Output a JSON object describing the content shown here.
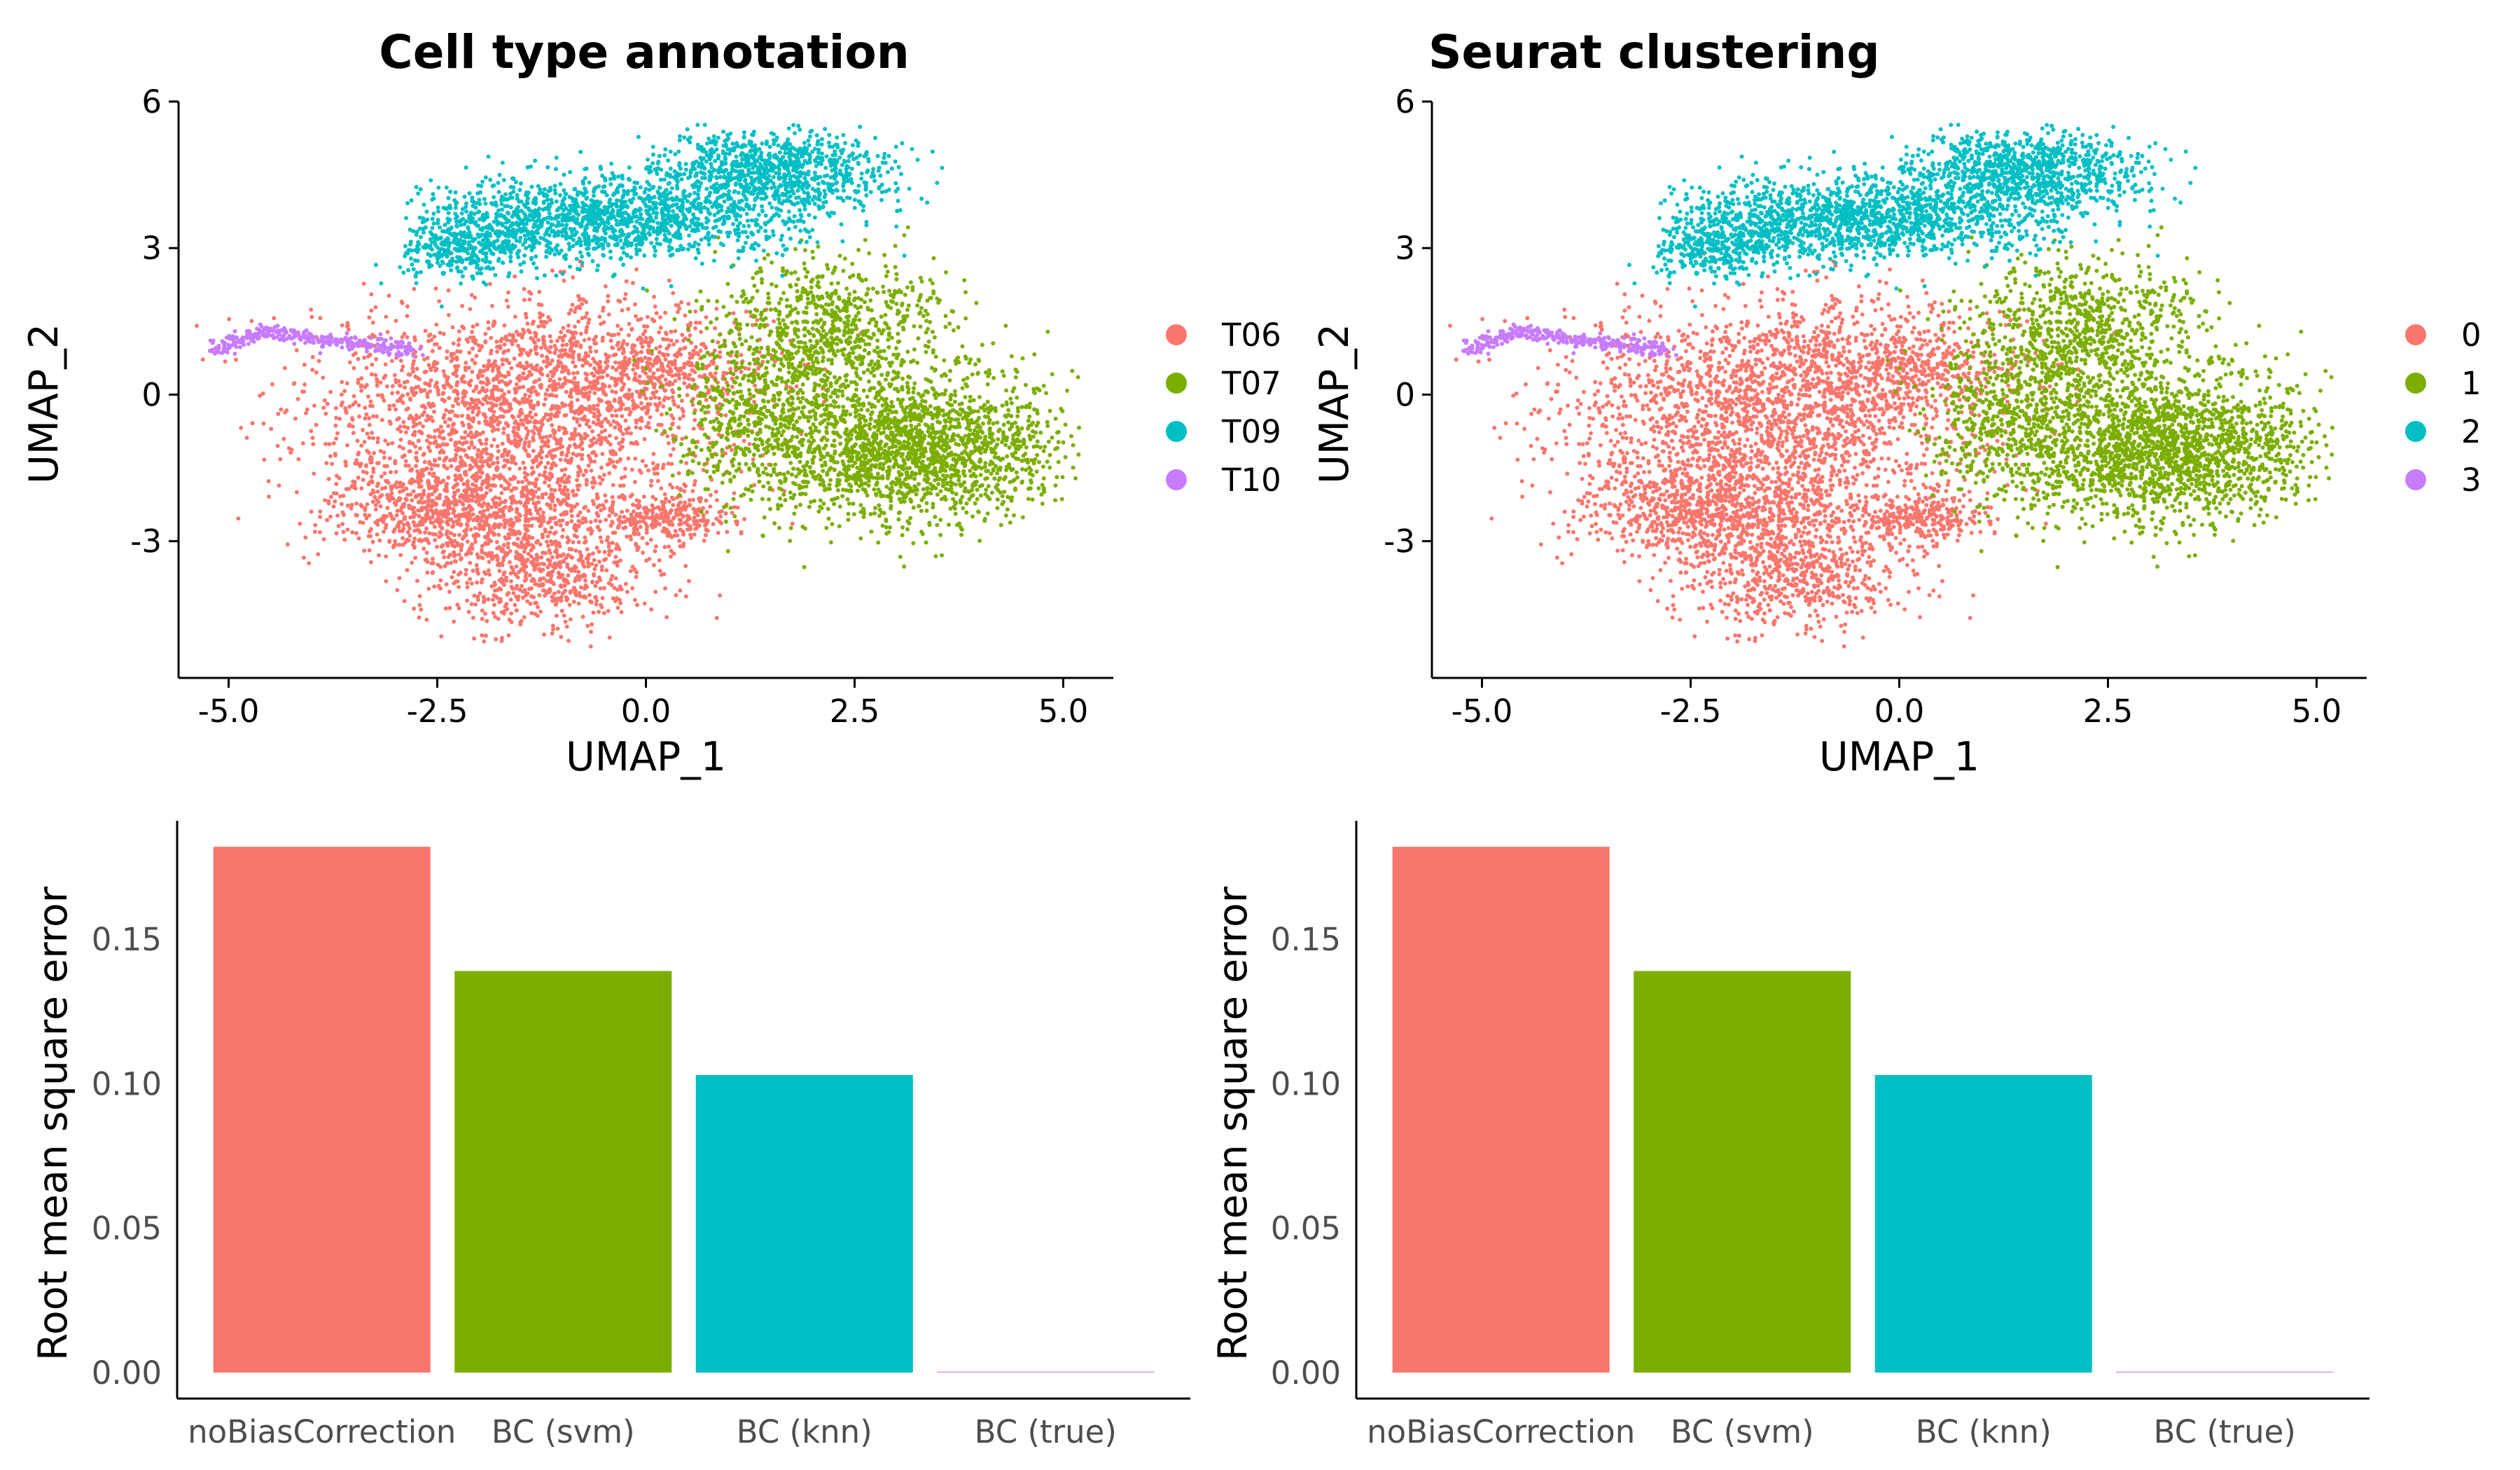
{
  "chart_data": [
    {
      "type": "scatter",
      "title": "Cell type annotation",
      "xlabel": "UMAP_1",
      "ylabel": "UMAP_2",
      "xlim": [
        -5.6,
        5.6
      ],
      "ylim": [
        -5.8,
        6.0
      ],
      "xticks": [
        -5.0,
        -2.5,
        0.0,
        2.5,
        5.0
      ],
      "xtick_labels": [
        "-5.0",
        "-2.5",
        "0.0",
        "2.5",
        "5.0"
      ],
      "yticks": [
        -3,
        0,
        3,
        6
      ],
      "ytick_labels": [
        "-3",
        "0",
        "3",
        "6"
      ],
      "grid": false,
      "legend_position": "right",
      "series": [
        {
          "name": "T06",
          "color": "#F8766D",
          "approx_center": [
            -1.5,
            -1.0
          ]
        },
        {
          "name": "T07",
          "color": "#7CAE00",
          "approx_center": [
            3.0,
            -0.5
          ]
        },
        {
          "name": "T09",
          "color": "#00BFC4",
          "approx_center": [
            0.0,
            3.8
          ]
        },
        {
          "name": "T10",
          "color": "#C77CFF",
          "approx_center": [
            -4.3,
            1.2
          ]
        }
      ]
    },
    {
      "type": "scatter",
      "title": "Seurat clustering",
      "xlabel": "UMAP_1",
      "ylabel": "UMAP_2",
      "xlim": [
        -5.6,
        5.6
      ],
      "ylim": [
        -5.8,
        6.0
      ],
      "xticks": [
        -5.0,
        -2.5,
        0.0,
        2.5,
        5.0
      ],
      "xtick_labels": [
        "-5.0",
        "-2.5",
        "0.0",
        "2.5",
        "5.0"
      ],
      "yticks": [
        -3,
        0,
        3,
        6
      ],
      "ytick_labels": [
        "-3",
        "0",
        "3",
        "6"
      ],
      "grid": false,
      "legend_position": "right",
      "series": [
        {
          "name": "0",
          "color": "#F8766D",
          "approx_center": [
            -1.5,
            -1.0
          ]
        },
        {
          "name": "1",
          "color": "#7CAE00",
          "approx_center": [
            3.0,
            -0.5
          ]
        },
        {
          "name": "2",
          "color": "#00BFC4",
          "approx_center": [
            0.0,
            3.8
          ]
        },
        {
          "name": "3",
          "color": "#C77CFF",
          "approx_center": [
            -4.3,
            1.2
          ]
        }
      ]
    },
    {
      "type": "bar",
      "title": "",
      "xlabel": "",
      "ylabel": "Root mean square error",
      "categories": [
        "noBiasCorrection",
        "BC (svm)",
        "BC (knn)",
        "BC (true)"
      ],
      "values": [
        0.182,
        0.139,
        0.103,
        0.0
      ],
      "colors": [
        "#F8766D",
        "#7CAE00",
        "#00BFC4",
        "#C77CFF"
      ],
      "ylim": [
        -0.009,
        0.191
      ],
      "yticks": [
        0.0,
        0.05,
        0.1,
        0.15
      ],
      "ytick_labels": [
        "0.00",
        "0.05",
        "0.10",
        "0.15"
      ],
      "grid": false
    },
    {
      "type": "bar",
      "title": "",
      "xlabel": "",
      "ylabel": "Root mean square error",
      "categories": [
        "noBiasCorrection",
        "BC (svm)",
        "BC (knn)",
        "BC (true)"
      ],
      "values": [
        0.182,
        0.139,
        0.103,
        0.0
      ],
      "colors": [
        "#F8766D",
        "#7CAE00",
        "#00BFC4",
        "#C77CFF"
      ],
      "ylim": [
        -0.009,
        0.191
      ],
      "yticks": [
        0.0,
        0.05,
        0.1,
        0.15
      ],
      "ytick_labels": [
        "0.00",
        "0.05",
        "0.10",
        "0.15"
      ],
      "grid": false
    }
  ]
}
